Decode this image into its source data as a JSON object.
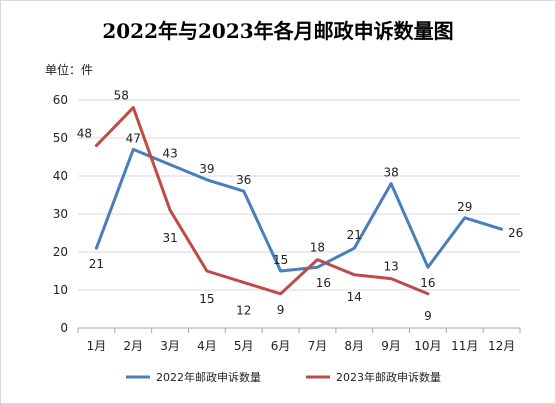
{
  "chart_data": {
    "type": "line",
    "title": "2022年与2023年各月邮政申诉数量图",
    "unit_label": "单位：件",
    "categories": [
      "1月",
      "2月",
      "3月",
      "4月",
      "5月",
      "6月",
      "7月",
      "8月",
      "9月",
      "10月",
      "11月",
      "12月"
    ],
    "ylim": [
      0,
      60
    ],
    "yticks": [
      0,
      10,
      20,
      30,
      40,
      50,
      60
    ],
    "grid": true,
    "legend_position": "bottom",
    "series": [
      {
        "name": "2022年邮政申诉数量",
        "color": "#4a7ebb",
        "values": [
          21,
          47,
          43,
          39,
          36,
          15,
          16,
          21,
          38,
          16,
          29,
          26
        ]
      },
      {
        "name": "2023年邮政申诉数量",
        "color": "#be4b48",
        "values": [
          48,
          58,
          31,
          15,
          12,
          9,
          18,
          14,
          13,
          9,
          null,
          null
        ]
      }
    ]
  }
}
